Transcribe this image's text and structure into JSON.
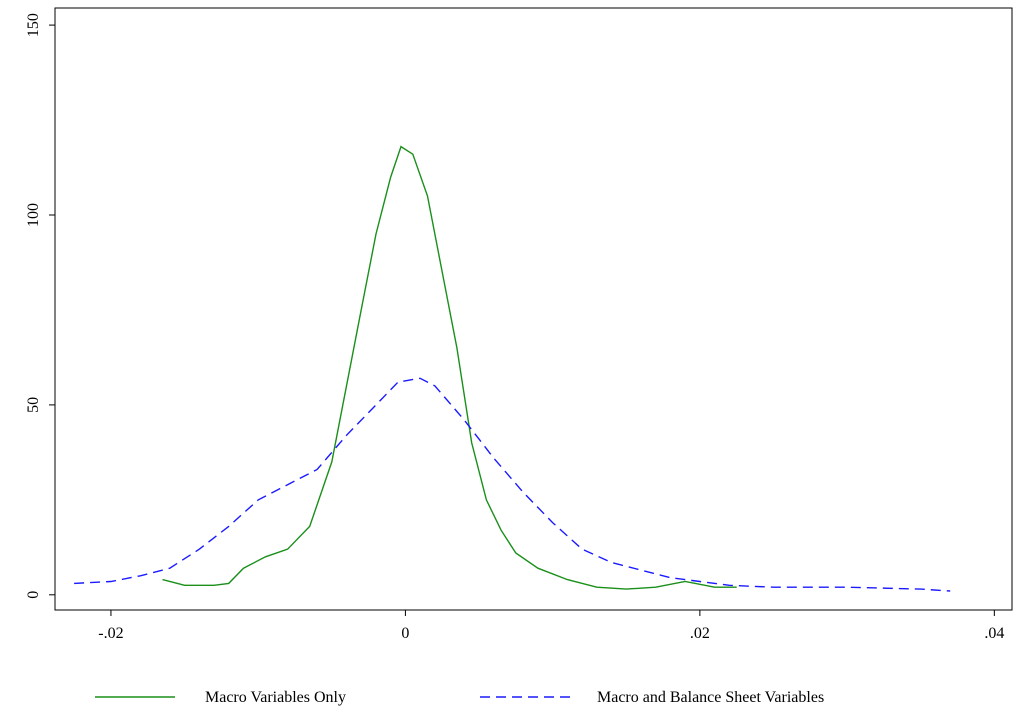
{
  "chart_data": {
    "type": "line",
    "xlim": [
      -0.0238,
      0.0412
    ],
    "ylim": [
      -4,
      154.5
    ],
    "xticks": [
      {
        "value": -0.02,
        "label": "-.02"
      },
      0,
      {
        "value": 0.02,
        "label": ".02"
      },
      {
        "value": 0.04,
        "label": ".04"
      }
    ],
    "yticks": [
      0,
      50,
      100,
      150
    ],
    "legend": "bottom",
    "series": [
      {
        "name": "Macro Variables Only",
        "color": "#1a8f1a",
        "dash": false,
        "x": [
          -0.0165,
          -0.015,
          -0.013,
          -0.012,
          -0.011,
          -0.0095,
          -0.008,
          -0.0065,
          -0.005,
          -0.004,
          -0.003,
          -0.002,
          -0.001,
          -0.0003,
          0.0005,
          0.0015,
          0.0025,
          0.0035,
          0.0045,
          0.0055,
          0.0065,
          0.0075,
          0.009,
          0.011,
          0.013,
          0.015,
          0.017,
          0.019,
          0.021,
          0.0225
        ],
        "values": [
          4,
          2.5,
          2.5,
          3,
          7,
          10,
          12,
          18,
          35,
          55,
          75,
          95,
          110,
          118,
          116,
          105,
          85,
          65,
          40,
          25,
          17,
          11,
          7,
          4,
          2,
          1.5,
          2,
          3.5,
          2,
          2
        ]
      },
      {
        "name": "Macro and Balance Sheet Variables",
        "color": "#1a1aff",
        "dash": true,
        "x": [
          -0.0225,
          -0.02,
          -0.018,
          -0.016,
          -0.014,
          -0.012,
          -0.01,
          -0.008,
          -0.006,
          -0.004,
          -0.002,
          -0.0005,
          0.001,
          0.002,
          0.004,
          0.006,
          0.008,
          0.01,
          0.012,
          0.014,
          0.016,
          0.018,
          0.02,
          0.022,
          0.025,
          0.03,
          0.035,
          0.037
        ],
        "values": [
          3,
          3.5,
          5,
          7,
          12,
          18,
          25,
          29,
          33,
          42,
          50,
          56,
          57,
          55,
          46,
          36,
          27,
          19,
          12,
          8.5,
          6.5,
          4.5,
          3.5,
          2.5,
          2,
          2,
          1.5,
          1
        ]
      }
    ]
  }
}
